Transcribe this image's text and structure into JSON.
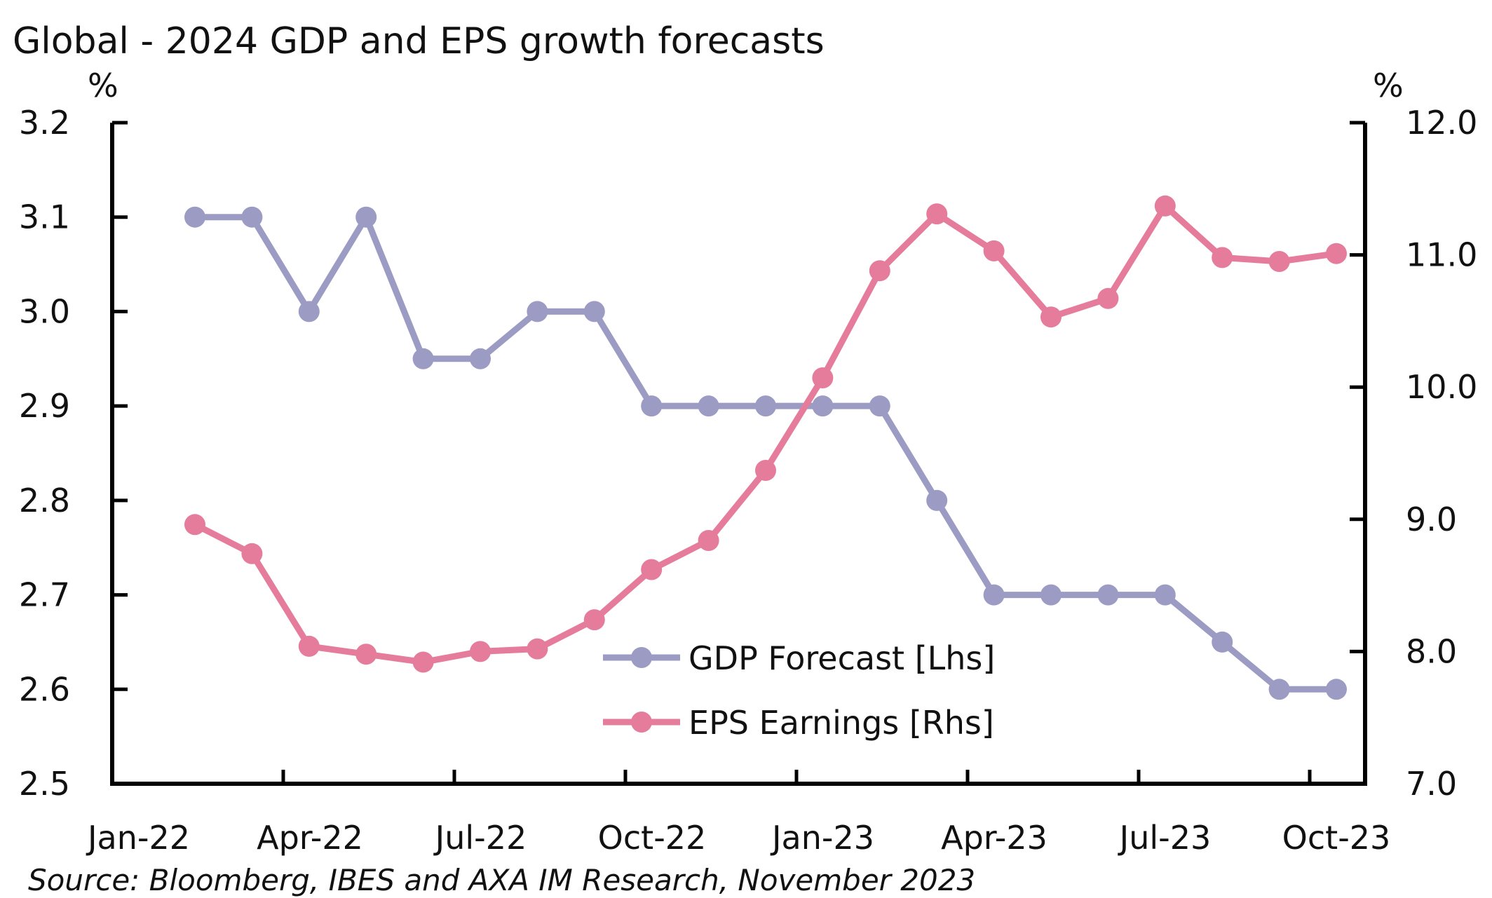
{
  "chart_data": {
    "type": "line",
    "title": "Global - 2024 GDP and EPS growth forecasts",
    "source": "Source: Bloomberg, IBES and AXA IM Research, November 2023",
    "x_tick_labels": [
      "Jan-22",
      "Apr-22",
      "Jul-22",
      "Oct-22",
      "Jan-23",
      "Apr-23",
      "Jul-23",
      "Oct-23"
    ],
    "x": [
      "Feb-22",
      "Mar-22",
      "Apr-22",
      "May-22",
      "Jun-22",
      "Jul-22",
      "Aug-22",
      "Sep-22",
      "Oct-22",
      "Nov-22",
      "Dec-22",
      "Jan-23",
      "Feb-23",
      "Mar-23",
      "Apr-23",
      "May-23",
      "Jun-23",
      "Jul-23",
      "Aug-23",
      "Sep-23",
      "Oct-23"
    ],
    "y_left": {
      "unit": "%",
      "range": [
        2.5,
        3.2
      ],
      "ticks": [
        "2.5",
        "2.6",
        "2.7",
        "2.8",
        "2.9",
        "3.0",
        "3.1",
        "3.2"
      ]
    },
    "y_right": {
      "unit": "%",
      "range": [
        7.0,
        12.0
      ],
      "ticks": [
        "7.0",
        "8.0",
        "9.0",
        "10.0",
        "11.0",
        "12.0"
      ]
    },
    "legend_position": "center-right",
    "series": [
      {
        "name": "GDP Forecast [Lhs]",
        "axis": "left",
        "color": "#9b9bc4",
        "values": [
          3.1,
          3.1,
          3.0,
          3.1,
          2.95,
          2.95,
          3.0,
          3.0,
          2.9,
          2.9,
          2.9,
          2.9,
          2.9,
          2.8,
          2.7,
          2.7,
          2.7,
          2.7,
          2.65,
          2.6,
          2.6
        ]
      },
      {
        "name": "EPS Earnings [Rhs]",
        "axis": "right",
        "color": "#e57c9b",
        "values": [
          8.96,
          8.74,
          8.04,
          7.98,
          7.92,
          8.0,
          8.02,
          8.24,
          8.62,
          8.84,
          9.37,
          10.07,
          10.88,
          11.31,
          11.03,
          10.53,
          10.67,
          11.37,
          10.98,
          10.95,
          11.01
        ]
      }
    ]
  }
}
